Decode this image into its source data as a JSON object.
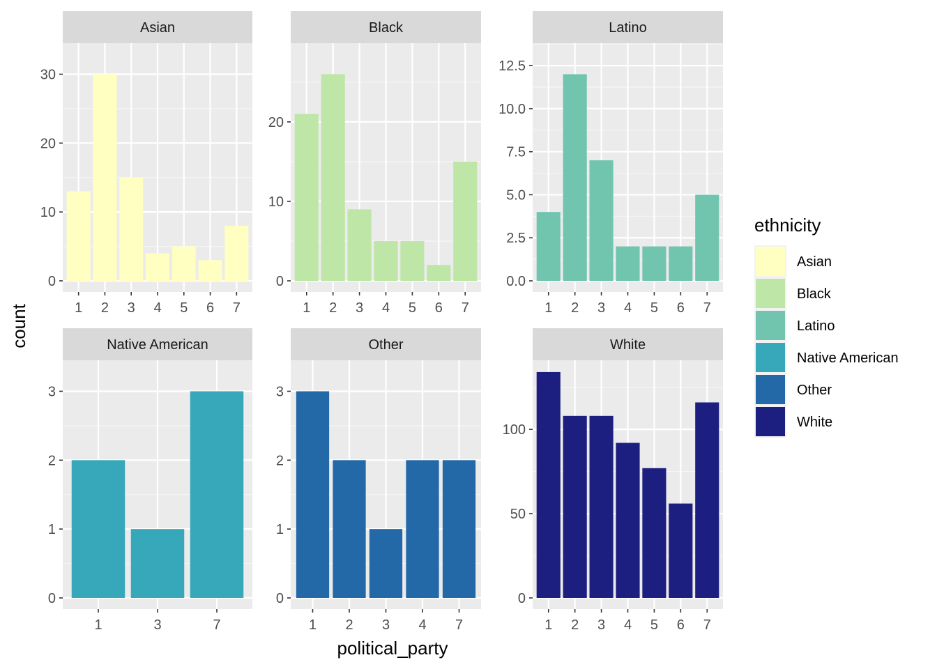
{
  "chart_data": {
    "type": "bar",
    "xlabel": "political_party",
    "ylabel": "count",
    "legend": {
      "title": "ethnicity",
      "placement": "right",
      "entries": [
        {
          "label": "Asian",
          "color": "#FFFFC1"
        },
        {
          "label": "Black",
          "color": "#BEE6A6"
        },
        {
          "label": "Latino",
          "color": "#71C5AF"
        },
        {
          "label": "Native American",
          "color": "#37A8BA"
        },
        {
          "label": "Other",
          "color": "#2369A8"
        },
        {
          "label": "White",
          "color": "#1D1F80"
        }
      ]
    },
    "grid": true,
    "facets": [
      {
        "name": "Asian",
        "color": "#FFFFC1",
        "categories": [
          "1",
          "2",
          "3",
          "4",
          "5",
          "6",
          "7"
        ],
        "values": [
          13,
          30,
          15,
          4,
          5,
          3,
          8
        ],
        "ylim": [
          0,
          34.5
        ],
        "yticks": [
          0,
          10,
          20,
          30
        ]
      },
      {
        "name": "Black",
        "color": "#BEE6A6",
        "categories": [
          "1",
          "2",
          "3",
          "4",
          "5",
          "6",
          "7"
        ],
        "values": [
          21,
          26,
          9,
          5,
          5,
          2,
          15
        ],
        "ylim": [
          0,
          29.9
        ],
        "yticks": [
          0,
          10,
          20
        ]
      },
      {
        "name": "Latino",
        "color": "#71C5AF",
        "categories": [
          "1",
          "2",
          "3",
          "4",
          "5",
          "6",
          "7"
        ],
        "values": [
          4,
          12,
          7,
          2,
          2,
          2,
          5
        ],
        "ylim": [
          0,
          13.8
        ],
        "yticks": [
          0.0,
          2.5,
          5.0,
          7.5,
          10.0,
          12.5
        ],
        "ytick_labels": [
          "0.0",
          "2.5",
          "5.0",
          "7.5",
          "10.0",
          "12.5"
        ]
      },
      {
        "name": "Native American",
        "color": "#37A8BA",
        "categories": [
          "1",
          "3",
          "7"
        ],
        "values": [
          2,
          1,
          3
        ],
        "ylim": [
          0,
          3.45
        ],
        "yticks": [
          0,
          1,
          2,
          3
        ]
      },
      {
        "name": "Other",
        "color": "#2369A8",
        "categories": [
          "1",
          "2",
          "3",
          "4",
          "7"
        ],
        "values": [
          3,
          2,
          1,
          2,
          2
        ],
        "ylim": [
          0,
          3.45
        ],
        "yticks": [
          0,
          1,
          2,
          3
        ]
      },
      {
        "name": "White",
        "color": "#1D1F80",
        "categories": [
          "1",
          "2",
          "3",
          "4",
          "5",
          "6",
          "7"
        ],
        "values": [
          134,
          108,
          108,
          92,
          77,
          56,
          116
        ],
        "ylim": [
          0,
          141
        ],
        "yticks": [
          0,
          50,
          100
        ]
      }
    ]
  }
}
